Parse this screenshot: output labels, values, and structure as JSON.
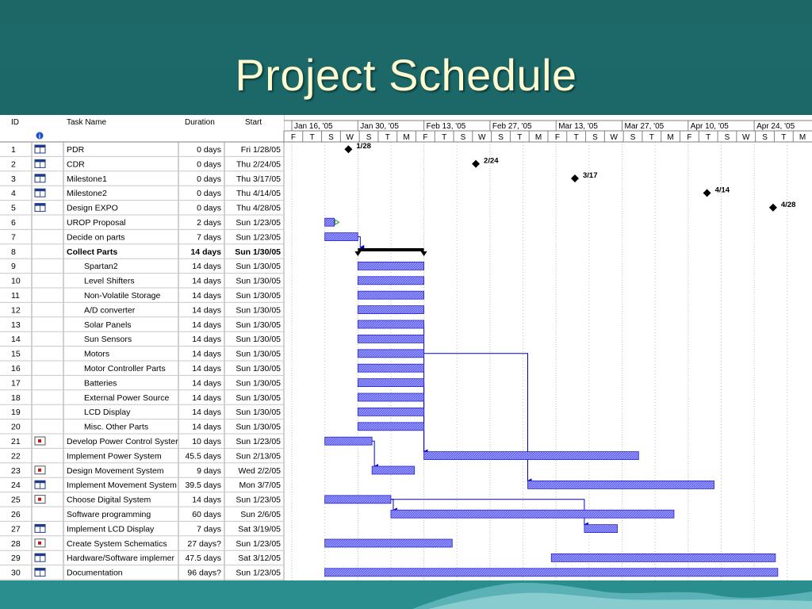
{
  "slide": {
    "title": "Project Schedule"
  },
  "columns": {
    "id": "ID",
    "info_icon": "info-icon",
    "name": "Task Name",
    "duration": "Duration",
    "start": "Start"
  },
  "timeline": {
    "weeks": [
      "Jan 16, '05",
      "Jan 30, '05",
      "Feb 13, '05",
      "Feb 27, '05",
      "Mar 13, '05",
      "Mar 27, '05",
      "Apr 10, '05",
      "Apr 24, '05"
    ],
    "days": [
      "F",
      "T",
      "S",
      "W",
      "S",
      "T",
      "M",
      "F",
      "T",
      "S",
      "W",
      "S",
      "T",
      "M",
      "F",
      "T",
      "S",
      "W",
      "S",
      "T",
      "M",
      "F",
      "T",
      "S",
      "W",
      "S",
      "T",
      "M"
    ]
  },
  "tasks": [
    {
      "id": "1",
      "icon": "calendar-icon",
      "name": "PDR",
      "duration": "0 days",
      "start": "Fri 1/28/05",
      "milestone": true,
      "label": "1/28",
      "s": 12
    },
    {
      "id": "2",
      "icon": "calendar-icon",
      "name": "CDR",
      "duration": "0 days",
      "start": "Thu 2/24/05",
      "milestone": true,
      "label": "2/24",
      "s": 39
    },
    {
      "id": "3",
      "icon": "calendar-icon",
      "name": "Milestone1",
      "duration": "0 days",
      "start": "Thu 3/17/05",
      "milestone": true,
      "label": "3/17",
      "s": 60
    },
    {
      "id": "4",
      "icon": "calendar-icon",
      "name": "Milestone2",
      "duration": "0 days",
      "start": "Thu 4/14/05",
      "milestone": true,
      "label": "4/14",
      "s": 88
    },
    {
      "id": "5",
      "icon": "calendar-icon",
      "name": "Design EXPO",
      "duration": "0 days",
      "start": "Thu 4/28/05",
      "milestone": true,
      "label": "4/28",
      "s": 102
    },
    {
      "id": "6",
      "icon": "",
      "name": "UROP Proposal",
      "duration": "2 days",
      "start": "Sun 1/23/05",
      "s": 7,
      "d": 2,
      "flag": true
    },
    {
      "id": "7",
      "icon": "",
      "name": "Decide on parts",
      "duration": "7 days",
      "start": "Sun 1/23/05",
      "s": 7,
      "d": 7
    },
    {
      "id": "8",
      "icon": "",
      "name": "Collect Parts",
      "duration": "14 days",
      "start": "Sun 1/30/05",
      "s": 14,
      "d": 14,
      "summary": true
    },
    {
      "id": "9",
      "icon": "",
      "name": "Spartan2",
      "duration": "14 days",
      "start": "Sun 1/30/05",
      "s": 14,
      "d": 14,
      "indent": true
    },
    {
      "id": "10",
      "icon": "",
      "name": "Level Shifters",
      "duration": "14 days",
      "start": "Sun 1/30/05",
      "s": 14,
      "d": 14,
      "indent": true
    },
    {
      "id": "11",
      "icon": "",
      "name": "Non-Volatile Storage",
      "duration": "14 days",
      "start": "Sun 1/30/05",
      "s": 14,
      "d": 14,
      "indent": true
    },
    {
      "id": "12",
      "icon": "",
      "name": "A/D converter",
      "duration": "14 days",
      "start": "Sun 1/30/05",
      "s": 14,
      "d": 14,
      "indent": true
    },
    {
      "id": "13",
      "icon": "",
      "name": "Solar Panels",
      "duration": "14 days",
      "start": "Sun 1/30/05",
      "s": 14,
      "d": 14,
      "indent": true
    },
    {
      "id": "14",
      "icon": "",
      "name": "Sun Sensors",
      "duration": "14 days",
      "start": "Sun 1/30/05",
      "s": 14,
      "d": 14,
      "indent": true
    },
    {
      "id": "15",
      "icon": "",
      "name": "Motors",
      "duration": "14 days",
      "start": "Sun 1/30/05",
      "s": 14,
      "d": 14,
      "indent": true
    },
    {
      "id": "16",
      "icon": "",
      "name": "Motor Controller Parts",
      "duration": "14 days",
      "start": "Sun 1/30/05",
      "s": 14,
      "d": 14,
      "indent": true
    },
    {
      "id": "17",
      "icon": "",
      "name": "Batteries",
      "duration": "14 days",
      "start": "Sun 1/30/05",
      "s": 14,
      "d": 14,
      "indent": true
    },
    {
      "id": "18",
      "icon": "",
      "name": "External Power Source",
      "duration": "14 days",
      "start": "Sun 1/30/05",
      "s": 14,
      "d": 14,
      "indent": true
    },
    {
      "id": "19",
      "icon": "",
      "name": "LCD Display",
      "duration": "14 days",
      "start": "Sun 1/30/05",
      "s": 14,
      "d": 14,
      "indent": true
    },
    {
      "id": "20",
      "icon": "",
      "name": "Misc. Other Parts",
      "duration": "14 days",
      "start": "Sun 1/30/05",
      "s": 14,
      "d": 14,
      "indent": true
    },
    {
      "id": "21",
      "icon": "note-icon",
      "name": "Develop Power Control Syster",
      "duration": "10 days",
      "start": "Sun 1/23/05",
      "s": 7,
      "d": 10
    },
    {
      "id": "22",
      "icon": "",
      "name": "Implement Power System",
      "duration": "45.5 days",
      "start": "Sun 2/13/05",
      "s": 28,
      "d": 45.5
    },
    {
      "id": "23",
      "icon": "note-icon",
      "name": "Design Movement System",
      "duration": "9 days",
      "start": "Wed 2/2/05",
      "s": 17,
      "d": 9
    },
    {
      "id": "24",
      "icon": "calendar-icon",
      "name": "Implement Movement System",
      "duration": "39.5 days",
      "start": "Mon 3/7/05",
      "s": 50,
      "d": 39.5
    },
    {
      "id": "25",
      "icon": "note-icon",
      "name": "Choose Digital System",
      "duration": "14 days",
      "start": "Sun 1/23/05",
      "s": 7,
      "d": 14
    },
    {
      "id": "26",
      "icon": "",
      "name": "Software programming",
      "duration": "60 days",
      "start": "Sun 2/6/05",
      "s": 21,
      "d": 60
    },
    {
      "id": "27",
      "icon": "calendar-icon",
      "name": "Implement LCD Display",
      "duration": "7 days",
      "start": "Sat 3/19/05",
      "s": 62,
      "d": 7
    },
    {
      "id": "28",
      "icon": "note-icon",
      "name": "Create System Schematics",
      "duration": "27 days?",
      "start": "Sun 1/23/05",
      "s": 7,
      "d": 27
    },
    {
      "id": "29",
      "icon": "calendar-icon",
      "name": "Hardware/Software implemer",
      "duration": "47.5 days",
      "start": "Sat 3/12/05",
      "s": 55,
      "d": 47.5
    },
    {
      "id": "30",
      "icon": "calendar-icon",
      "name": "Documentation",
      "duration": "96 days?",
      "start": "Sun 1/23/05",
      "s": 7,
      "d": 96
    }
  ],
  "colors": {
    "bar": "#6666ff",
    "summary": "#000000",
    "link": "#0000cc",
    "grid": "#bdbdbd",
    "title": "#fffbd0",
    "background": "#1f6a6a"
  }
}
